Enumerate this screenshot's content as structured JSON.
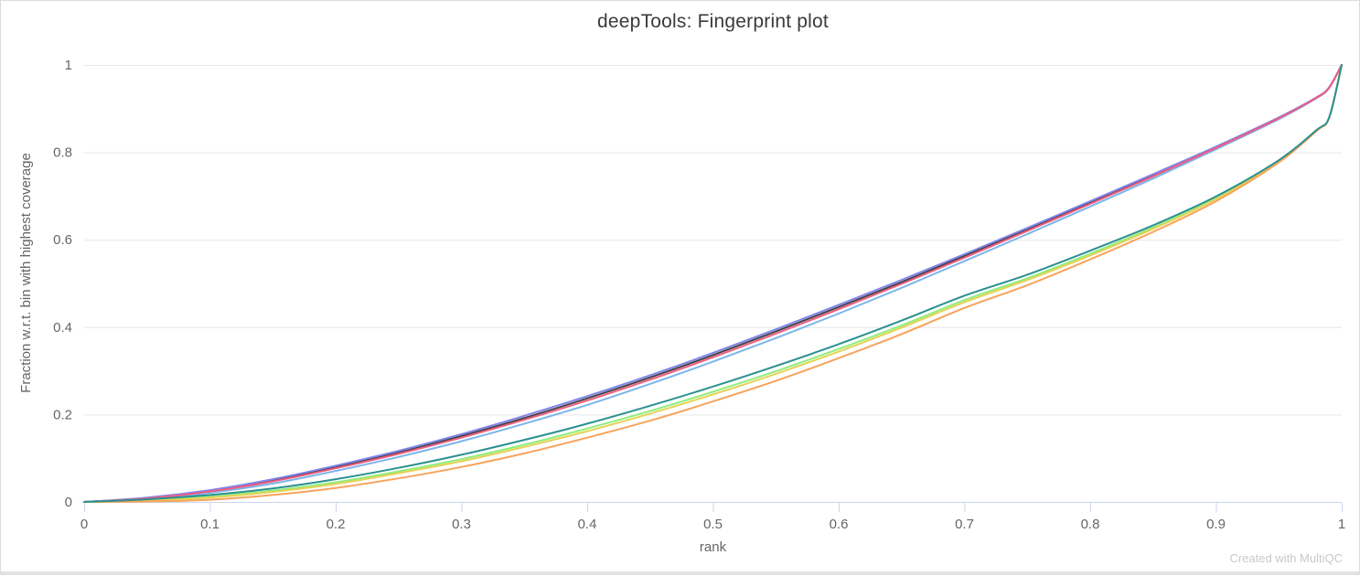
{
  "page": {
    "watermark": "Created with MultiQC"
  },
  "chart_data": {
    "type": "line",
    "title": "deepTools: Fingerprint plot",
    "xlabel": "rank",
    "ylabel": "Fraction w.r.t. bin with highest coverage",
    "xlim": [
      0,
      1
    ],
    "ylim": [
      0,
      1
    ],
    "x_tick_labels": [
      "0",
      "0.1",
      "0.2",
      "0.3",
      "0.4",
      "0.5",
      "0.6",
      "0.7",
      "0.8",
      "0.9",
      "1"
    ],
    "y_tick_labels": [
      "0",
      "0.2",
      "0.4",
      "0.6",
      "0.8",
      "1"
    ],
    "grid": "horizontal",
    "legend": "none",
    "colors": {
      "axis": "#ccd6eb",
      "grid": "#e6e6e6",
      "tick_text": "#666666",
      "title_text": "#3b3b3b",
      "axis_title_text": "#666666",
      "watermark_text": "#c9c9c9"
    },
    "x": [
      0,
      0.05,
      0.1,
      0.15,
      0.2,
      0.25,
      0.3,
      0.35,
      0.4,
      0.45,
      0.5,
      0.55,
      0.6,
      0.65,
      0.7,
      0.75,
      0.8,
      0.85,
      0.9,
      0.95,
      0.98,
      0.99,
      1
    ],
    "series": [
      {
        "color": "#7cb5ec",
        "y": [
          0,
          0.006,
          0.021,
          0.042,
          0.071,
          0.103,
          0.139,
          0.179,
          0.222,
          0.27,
          0.321,
          0.375,
          0.431,
          0.49,
          0.551,
          0.613,
          0.676,
          0.74,
          0.807,
          0.876,
          0.924,
          0.948,
          1
        ]
      },
      {
        "color": "#434348",
        "y": [
          0,
          0.009,
          0.026,
          0.049,
          0.08,
          0.114,
          0.151,
          0.192,
          0.237,
          0.285,
          0.336,
          0.39,
          0.446,
          0.503,
          0.563,
          0.624,
          0.685,
          0.747,
          0.812,
          0.879,
          0.925,
          0.948,
          1
        ]
      },
      {
        "color": "#8085e9",
        "y": [
          0,
          0.01,
          0.027,
          0.052,
          0.083,
          0.117,
          0.155,
          0.197,
          0.242,
          0.29,
          0.341,
          0.395,
          0.451,
          0.508,
          0.567,
          0.627,
          0.688,
          0.75,
          0.813,
          0.88,
          0.926,
          0.949,
          1
        ]
      },
      {
        "color": "#f15c80",
        "y": [
          0,
          0.008,
          0.024,
          0.047,
          0.077,
          0.11,
          0.147,
          0.188,
          0.232,
          0.28,
          0.331,
          0.385,
          0.441,
          0.499,
          0.559,
          0.62,
          0.682,
          0.745,
          0.81,
          0.878,
          0.925,
          0.948,
          1
        ]
      },
      {
        "color": "#90ed7d",
        "y": [
          0,
          0.004,
          0.012,
          0.026,
          0.045,
          0.07,
          0.098,
          0.131,
          0.168,
          0.208,
          0.252,
          0.299,
          0.35,
          0.404,
          0.462,
          0.512,
          0.568,
          0.628,
          0.695,
          0.78,
          0.85,
          0.88,
          1
        ]
      },
      {
        "color": "#e4d354",
        "y": [
          0,
          0.003,
          0.01,
          0.023,
          0.041,
          0.066,
          0.093,
          0.126,
          0.162,
          0.202,
          0.246,
          0.293,
          0.344,
          0.399,
          0.457,
          0.508,
          0.564,
          0.625,
          0.693,
          0.779,
          0.85,
          0.88,
          1
        ]
      },
      {
        "color": "#f7a35c",
        "y": [
          0,
          0.001,
          0.005,
          0.016,
          0.032,
          0.054,
          0.08,
          0.111,
          0.147,
          0.186,
          0.23,
          0.277,
          0.329,
          0.384,
          0.444,
          0.496,
          0.555,
          0.618,
          0.688,
          0.777,
          0.849,
          0.879,
          1
        ]
      },
      {
        "color": "#2b908f",
        "y": [
          0,
          0.006,
          0.016,
          0.031,
          0.052,
          0.078,
          0.108,
          0.142,
          0.179,
          0.22,
          0.264,
          0.311,
          0.361,
          0.415,
          0.472,
          0.52,
          0.575,
          0.633,
          0.699,
          0.782,
          0.851,
          0.88,
          1
        ]
      }
    ]
  }
}
